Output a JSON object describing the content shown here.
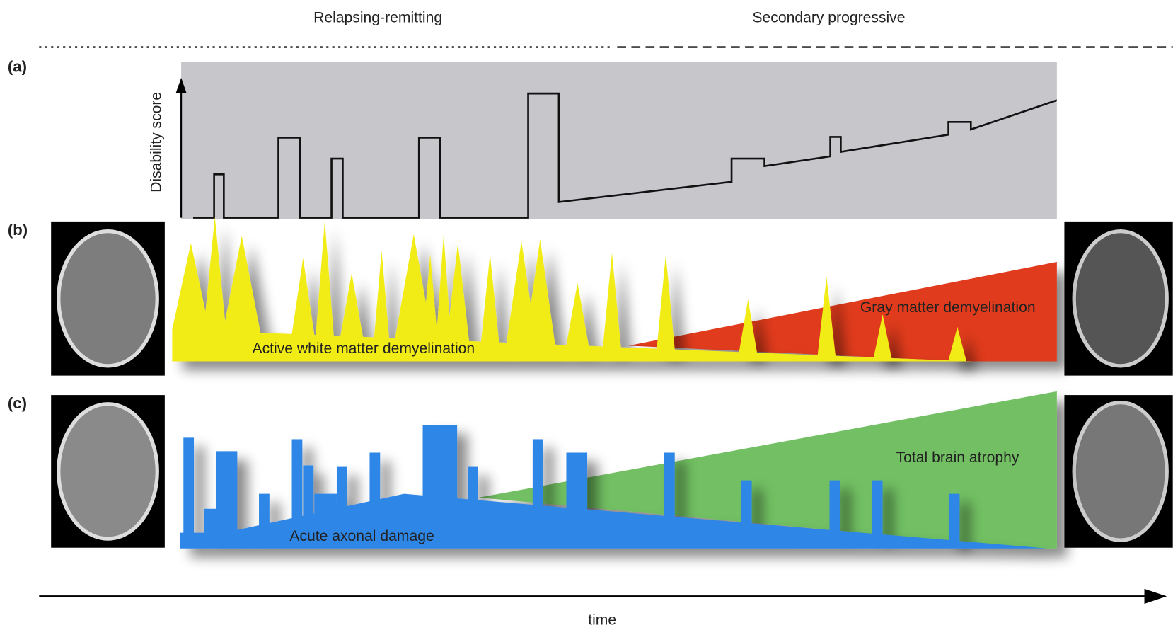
{
  "header": {
    "left_phase": "Relapsing-remitting",
    "right_phase": "Secondary progressive"
  },
  "panels": [
    {
      "label": "(a)",
      "y_axis_label": "Disability score"
    },
    {
      "label": "(b)",
      "left_region": "Active white matter demyelination",
      "right_region": "Gray matter demyelination"
    },
    {
      "label": "(c)",
      "left_region": "Acute axonal damage",
      "right_region": "Total brain atrophy"
    }
  ],
  "x_axis_label": "time"
}
